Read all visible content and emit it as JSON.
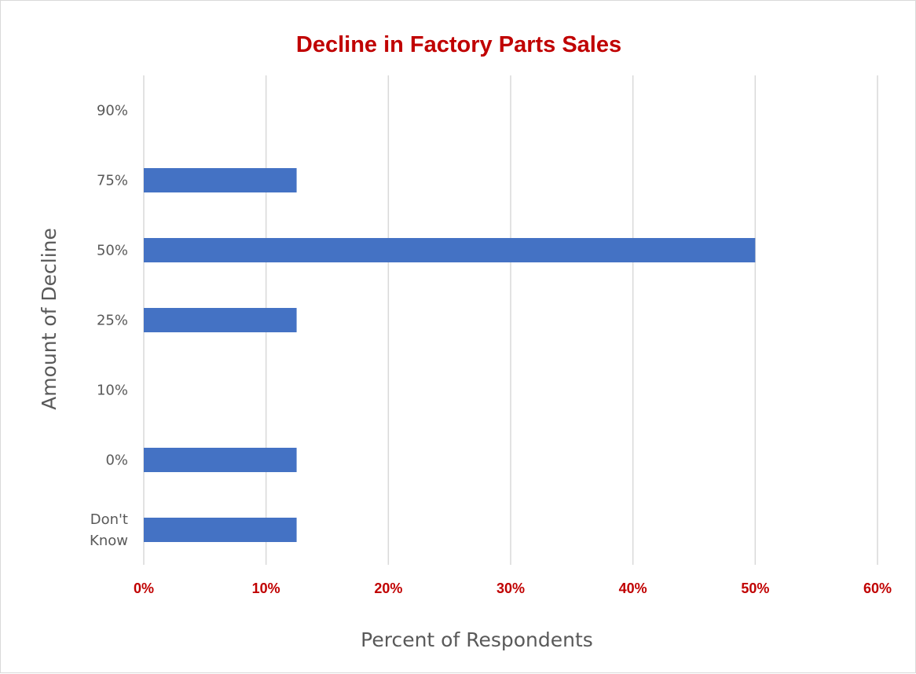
{
  "chart_data": {
    "type": "bar",
    "orientation": "horizontal",
    "title": "Decline in Factory Parts Sales",
    "xlabel": "Percent of Respondents",
    "ylabel": "Amount of Decline",
    "categories": [
      "90%",
      "75%",
      "50%",
      "25%",
      "10%",
      "0%",
      "Don't Know"
    ],
    "category_lines": [
      [
        "90%"
      ],
      [
        "75%"
      ],
      [
        "50%"
      ],
      [
        "25%"
      ],
      [
        "10%"
      ],
      [
        "0%"
      ],
      [
        "Don't",
        "Know"
      ]
    ],
    "values": [
      0,
      12.5,
      50,
      12.5,
      0,
      12.5,
      12.5
    ],
    "xlim": [
      0,
      60
    ],
    "xticks": [
      0,
      10,
      20,
      30,
      40,
      50,
      60
    ],
    "xtick_labels": [
      "0%",
      "10%",
      "20%",
      "30%",
      "40%",
      "50%",
      "60%"
    ],
    "grid": "vertical",
    "legend": "none"
  },
  "colors": {
    "bar": "#4472c4",
    "title": "#c00000",
    "tick_labels_x": "#c00000",
    "category_labels": "#595959",
    "axis_titles": "#595959",
    "grid": "#d9d9d9"
  }
}
